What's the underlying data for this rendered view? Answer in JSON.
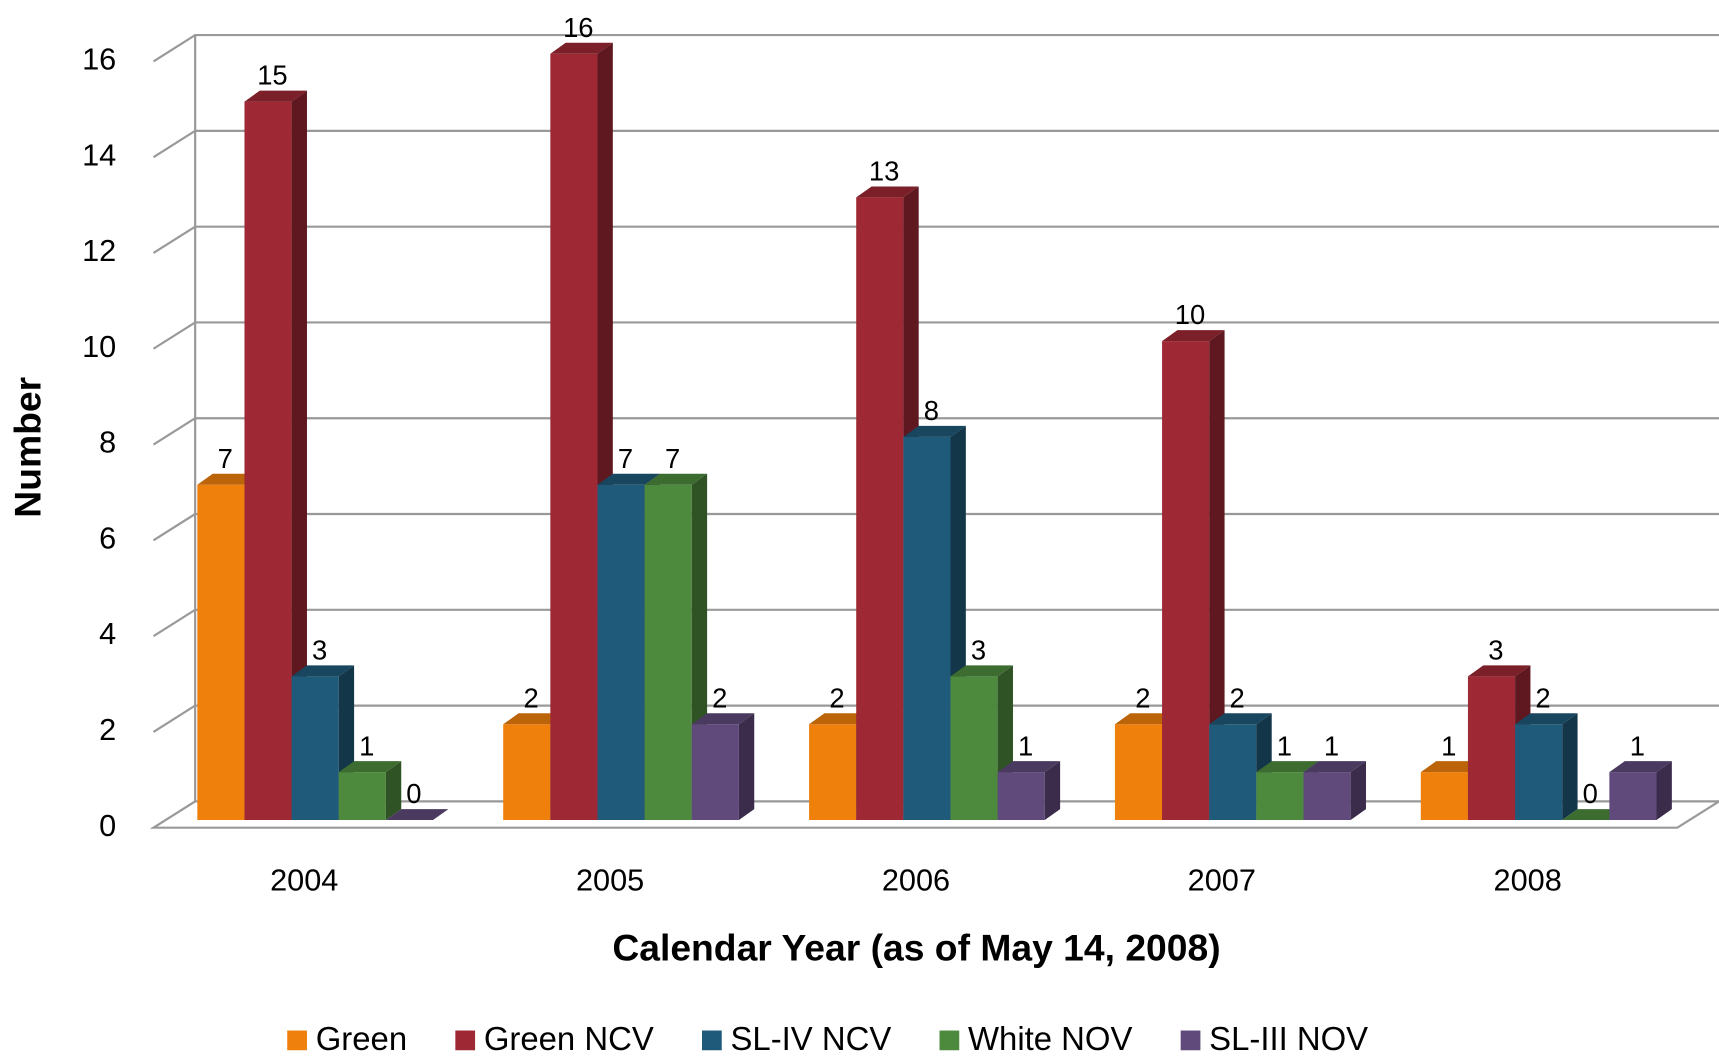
{
  "chart_data": {
    "type": "bar3d",
    "x_label": "Calendar Year (as of May 14, 2008)",
    "y_label": "Number",
    "categories": [
      "2004",
      "2005",
      "2006",
      "2007",
      "2008"
    ],
    "series": [
      {
        "name": "Green",
        "color": "#f0800c",
        "values": [
          7,
          2,
          2,
          2,
          1
        ]
      },
      {
        "name": "Green NCV",
        "color": "#9e2834",
        "values": [
          15,
          16,
          13,
          10,
          3
        ]
      },
      {
        "name": "SL-IV NCV",
        "color": "#1f5a7a",
        "values": [
          3,
          7,
          8,
          2,
          2
        ]
      },
      {
        "name": "White NOV",
        "color": "#4e8a3e",
        "values": [
          1,
          7,
          3,
          1,
          0
        ]
      },
      {
        "name": "SL-III NOV",
        "color": "#604a7b",
        "values": [
          0,
          2,
          1,
          1,
          1
        ]
      }
    ],
    "ylim": [
      0,
      16
    ],
    "yticks": [
      0,
      2,
      4,
      6,
      8,
      10,
      12,
      14,
      16
    ],
    "grid": true,
    "legend": "bottom"
  }
}
